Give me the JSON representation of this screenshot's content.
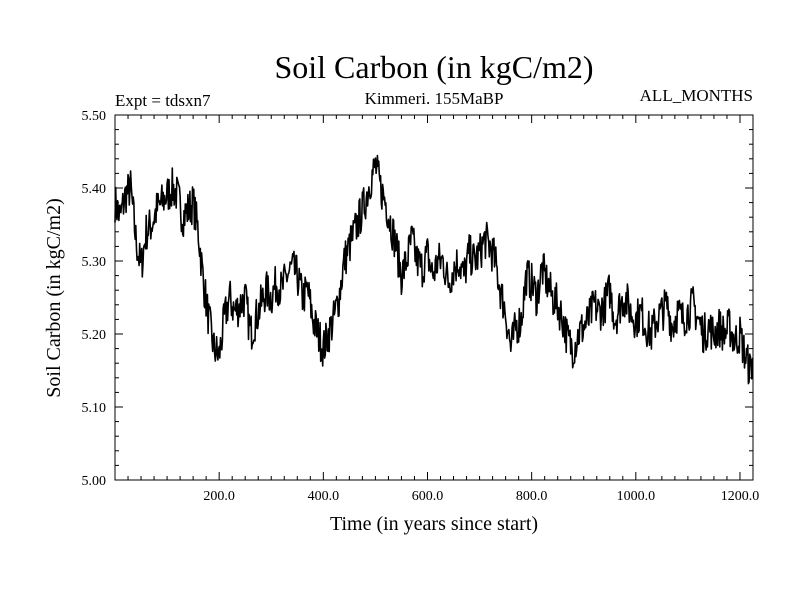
{
  "chart_data": {
    "type": "line",
    "title": "Soil Carbon (in kgC/m2)",
    "subtitle": "Kimmeri. 155MaBP",
    "left_label": "Expt = tdsxn7",
    "right_label": "ALL_MONTHS",
    "xlabel": "Time (in years since start)",
    "ylabel": "Soil Carbon (in kgC/m2)",
    "xlim": [
      0,
      1225
    ],
    "ylim": [
      5.0,
      5.5
    ],
    "x_ticks": [
      {
        "value": 200,
        "label": "200.0"
      },
      {
        "value": 400,
        "label": "400.0"
      },
      {
        "value": 600,
        "label": "600.0"
      },
      {
        "value": 800,
        "label": "800.0"
      },
      {
        "value": 1000,
        "label": "1000.0"
      },
      {
        "value": 1200,
        "label": "1200.0"
      }
    ],
    "y_ticks": [
      {
        "value": 5.0,
        "label": "5.00"
      },
      {
        "value": 5.1,
        "label": "5.10"
      },
      {
        "value": 5.2,
        "label": "5.20"
      },
      {
        "value": 5.3,
        "label": "5.30"
      },
      {
        "value": 5.4,
        "label": "5.40"
      },
      {
        "value": 5.5,
        "label": "5.50"
      }
    ],
    "series": [
      {
        "name": "Soil Carbon",
        "color": "#000000",
        "x": [
          0,
          10,
          20,
          30,
          40,
          50,
          60,
          70,
          80,
          90,
          100,
          110,
          120,
          130,
          140,
          150,
          160,
          170,
          180,
          190,
          200,
          210,
          220,
          230,
          240,
          250,
          260,
          270,
          280,
          290,
          300,
          310,
          320,
          330,
          340,
          350,
          360,
          370,
          380,
          390,
          400,
          410,
          420,
          430,
          440,
          450,
          460,
          470,
          480,
          490,
          500,
          510,
          520,
          530,
          540,
          550,
          560,
          570,
          580,
          590,
          600,
          610,
          620,
          630,
          640,
          650,
          660,
          670,
          680,
          690,
          700,
          710,
          720,
          730,
          740,
          750,
          760,
          770,
          780,
          790,
          800,
          810,
          820,
          830,
          840,
          850,
          860,
          870,
          880,
          890,
          900,
          910,
          920,
          930,
          940,
          950,
          960,
          970,
          980,
          990,
          1000,
          1010,
          1020,
          1030,
          1040,
          1050,
          1060,
          1070,
          1080,
          1090,
          1100,
          1110,
          1120,
          1130,
          1140,
          1150,
          1160,
          1170,
          1180,
          1190,
          1200,
          1210,
          1220,
          1225
        ],
        "values": [
          5.38,
          5.36,
          5.39,
          5.4,
          5.33,
          5.29,
          5.34,
          5.35,
          5.37,
          5.38,
          5.39,
          5.4,
          5.39,
          5.36,
          5.37,
          5.38,
          5.34,
          5.27,
          5.22,
          5.18,
          5.17,
          5.22,
          5.25,
          5.23,
          5.24,
          5.25,
          5.2,
          5.22,
          5.24,
          5.26,
          5.25,
          5.27,
          5.26,
          5.28,
          5.29,
          5.28,
          5.25,
          5.26,
          5.22,
          5.2,
          5.18,
          5.2,
          5.22,
          5.25,
          5.3,
          5.32,
          5.34,
          5.36,
          5.38,
          5.41,
          5.43,
          5.4,
          5.38,
          5.35,
          5.32,
          5.28,
          5.3,
          5.33,
          5.3,
          5.29,
          5.31,
          5.28,
          5.3,
          5.3,
          5.27,
          5.29,
          5.3,
          5.28,
          5.31,
          5.3,
          5.31,
          5.33,
          5.32,
          5.3,
          5.26,
          5.23,
          5.18,
          5.21,
          5.22,
          5.28,
          5.27,
          5.25,
          5.29,
          5.27,
          5.25,
          5.24,
          5.22,
          5.19,
          5.18,
          5.2,
          5.21,
          5.22,
          5.24,
          5.23,
          5.24,
          5.26,
          5.22,
          5.24,
          5.25,
          5.23,
          5.22,
          5.23,
          5.21,
          5.2,
          5.22,
          5.23,
          5.24,
          5.21,
          5.23,
          5.22,
          5.23,
          5.24,
          5.22,
          5.2,
          5.21,
          5.2,
          5.21,
          5.2,
          5.21,
          5.19,
          5.2,
          5.17,
          5.15,
          5.17
        ]
      }
    ]
  }
}
